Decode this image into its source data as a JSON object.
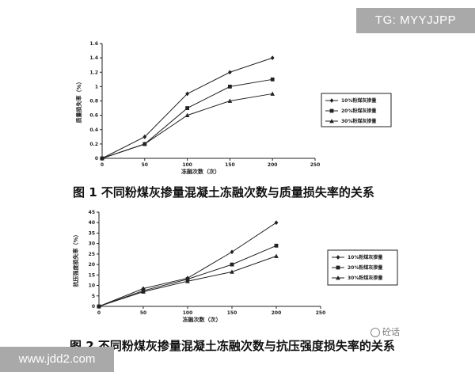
{
  "watermarks": {
    "top": "TG: MYYJJPP",
    "bottom": "www.jdd2.com",
    "source": "砼话"
  },
  "chart_data": [
    {
      "type": "line",
      "title": "图 1 不同粉煤灰掺量混凝土冻融次数与质量损失率的关系",
      "xlabel": "冻融次数（次）",
      "ylabel": "质量损失率（%）",
      "x": [
        0,
        50,
        100,
        150,
        200
      ],
      "xlim": [
        0,
        250
      ],
      "xticks": [
        0,
        50,
        100,
        150,
        200,
        250
      ],
      "ylim": [
        0,
        1.6
      ],
      "yticks": [
        0,
        0.2,
        0.4,
        0.6,
        0.8,
        1,
        1.2,
        1.4,
        1.6
      ],
      "grid": false,
      "legend_position": "right",
      "series": [
        {
          "name": "10%粉煤灰掺量",
          "marker": "diamond",
          "values": [
            0,
            0.3,
            0.9,
            1.2,
            1.4
          ]
        },
        {
          "name": "20%粉煤灰掺量",
          "marker": "square",
          "values": [
            0,
            0.2,
            0.7,
            1.0,
            1.1
          ]
        },
        {
          "name": "30%粉煤灰掺量",
          "marker": "triangle",
          "values": [
            0,
            0.2,
            0.6,
            0.8,
            0.9
          ]
        }
      ]
    },
    {
      "type": "line",
      "title": "图 2 不同粉煤灰掺量混凝土冻融次数与抗压强度损失率的关系",
      "xlabel": "冻融次数（次）",
      "ylabel": "抗压强度损失率（%）",
      "x": [
        0,
        50,
        100,
        150,
        200
      ],
      "xlim": [
        0,
        250
      ],
      "xticks": [
        0,
        50,
        100,
        150,
        200,
        250
      ],
      "ylim": [
        0,
        45
      ],
      "yticks": [
        0,
        5,
        10,
        15,
        20,
        25,
        30,
        35,
        40,
        45
      ],
      "grid": false,
      "legend_position": "right",
      "series": [
        {
          "name": "10%粉煤灰掺量",
          "marker": "diamond",
          "values": [
            0,
            8.5,
            13.5,
            26,
            40
          ]
        },
        {
          "name": "20%粉煤灰掺量",
          "marker": "square",
          "values": [
            0,
            7.5,
            13,
            20,
            29
          ]
        },
        {
          "name": "30%粉煤灰掺量",
          "marker": "triangle",
          "values": [
            0,
            7,
            12,
            16.5,
            24
          ]
        }
      ]
    }
  ]
}
